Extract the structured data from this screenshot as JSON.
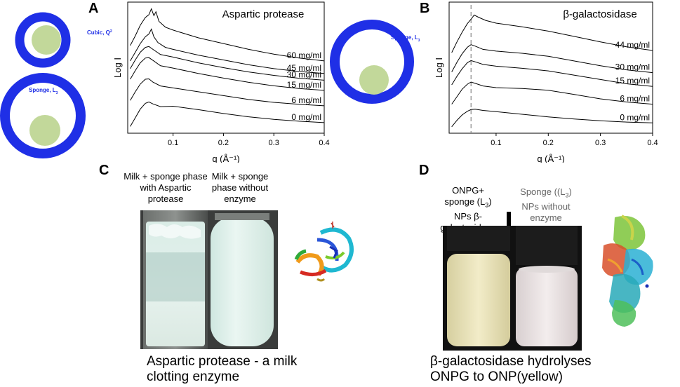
{
  "panels": {
    "A": {
      "letter": "A"
    },
    "B": {
      "letter": "B"
    },
    "C": {
      "letter": "C",
      "label_left": "Milk + sponge phase with Aspartic protease",
      "label_right": "Milk + sponge phase without enzyme",
      "caption_line1": "Aspartic protease - a milk",
      "caption_line2": "clotting enzyme"
    },
    "D": {
      "letter": "D",
      "label_left_1": "ONPG+",
      "label_left_2": "sponge (L",
      "label_left_2_sub": "3",
      "label_left_2_end": ")",
      "label_left_3": "NPs  β-",
      "label_left_4": "galactosidase",
      "label_right_1": "Sponge ((L",
      "label_right_1_sub": "3",
      "label_right_1_end": ")",
      "label_right_2": "NPs without",
      "label_right_3": "enzyme",
      "caption_line1": "β-galactosidase hydrolyses",
      "caption_line2": "ONPG to ONP(yellow)"
    }
  },
  "schematics": {
    "cubic_label": "Cubic, Q",
    "cubic_sup": "224",
    "sponge_label": "Sponge, L",
    "sponge_sub": "3",
    "sponge_label_b": "Sponge, L",
    "sponge_sub_b": "3"
  },
  "colors": {
    "ring": "#1f2fe6",
    "core": "#c2d89a",
    "label": "#1f2fe6"
  },
  "chart_data": [
    {
      "type": "line",
      "title": "Aspartic protease",
      "xlabel": "q (Å⁻¹)",
      "ylabel": "Log I",
      "xlim": [
        0.01,
        0.4
      ],
      "xticks": [
        0.1,
        0.2,
        0.3,
        0.4
      ],
      "xtick_labels": [
        "0.1",
        "0.2",
        "0.3",
        "0.4"
      ],
      "grid": false,
      "series": [
        {
          "name": "0 mg/ml",
          "x": [
            0.015,
            0.025,
            0.035,
            0.045,
            0.052,
            0.06,
            0.075,
            0.1,
            0.15,
            0.2,
            0.25,
            0.3,
            0.35,
            0.4
          ],
          "y": [
            -0.05,
            0.4,
            0.85,
            1.15,
            1.22,
            1.12,
            0.98,
            1.0,
            0.82,
            0.62,
            0.45,
            0.32,
            0.22,
            0.15
          ]
        },
        {
          "name": "6 mg/ml",
          "x": [
            0.015,
            0.025,
            0.035,
            0.045,
            0.052,
            0.06,
            0.075,
            0.1,
            0.15,
            0.2,
            0.25,
            0.3,
            0.35,
            0.4
          ],
          "y": [
            1.3,
            1.75,
            2.15,
            2.4,
            2.42,
            2.25,
            2.05,
            1.95,
            1.75,
            1.55,
            1.35,
            1.2,
            1.1,
            1.02
          ]
        },
        {
          "name": "15 mg/ml",
          "x": [
            0.015,
            0.025,
            0.035,
            0.045,
            0.052,
            0.06,
            0.075,
            0.1,
            0.15,
            0.2,
            0.25,
            0.3,
            0.35,
            0.4
          ],
          "y": [
            2.4,
            2.85,
            3.25,
            3.5,
            3.52,
            3.38,
            3.1,
            2.98,
            2.7,
            2.46,
            2.24,
            2.06,
            1.92,
            1.82
          ]
        },
        {
          "name": "30 mg/ml",
          "x": [
            0.015,
            0.025,
            0.035,
            0.045,
            0.052,
            0.06,
            0.075,
            0.1,
            0.15,
            0.2,
            0.25,
            0.3,
            0.35,
            0.4
          ],
          "y": [
            2.95,
            3.4,
            3.8,
            4.05,
            4.1,
            3.95,
            3.68,
            3.55,
            3.25,
            3.0,
            2.78,
            2.6,
            2.45,
            2.35
          ]
        },
        {
          "name": "45 mg/ml",
          "x": [
            0.015,
            0.025,
            0.035,
            0.045,
            0.052,
            0.057,
            0.062,
            0.07,
            0.085,
            0.1,
            0.15,
            0.2,
            0.25,
            0.3,
            0.35,
            0.4
          ],
          "y": [
            3.35,
            3.8,
            4.25,
            4.6,
            4.75,
            5.0,
            4.6,
            4.3,
            4.05,
            3.95,
            3.65,
            3.4,
            3.15,
            2.95,
            2.8,
            2.7
          ]
        },
        {
          "name": "60 mg/ml",
          "x": [
            0.015,
            0.025,
            0.035,
            0.045,
            0.052,
            0.057,
            0.062,
            0.066,
            0.072,
            0.085,
            0.1,
            0.15,
            0.2,
            0.25,
            0.3,
            0.35,
            0.4
          ],
          "y": [
            4.15,
            4.65,
            5.2,
            5.6,
            5.75,
            6.05,
            5.7,
            5.9,
            5.4,
            5.1,
            4.95,
            4.55,
            4.25,
            3.95,
            3.7,
            3.5,
            3.35
          ]
        }
      ]
    },
    {
      "type": "line",
      "title": "β-galactosidase",
      "xlabel": "q (Å⁻¹)",
      "ylabel": "Log I",
      "xlim": [
        0.01,
        0.4
      ],
      "xticks": [
        0.1,
        0.2,
        0.3,
        0.4
      ],
      "xtick_labels": [
        "0.1",
        "0.2",
        "0.3",
        "0.4"
      ],
      "grid": false,
      "reference_line_x": 0.052,
      "series": [
        {
          "name": "0 mg/ml",
          "x": [
            0.015,
            0.025,
            0.035,
            0.045,
            0.052,
            0.06,
            0.075,
            0.1,
            0.15,
            0.2,
            0.25,
            0.3,
            0.35,
            0.4
          ],
          "y": [
            -0.1,
            0.2,
            0.45,
            0.62,
            0.7,
            0.72,
            0.66,
            0.6,
            0.48,
            0.36,
            0.26,
            0.18,
            0.12,
            0.08
          ]
        },
        {
          "name": "6 mg/ml",
          "x": [
            0.015,
            0.025,
            0.035,
            0.045,
            0.052,
            0.06,
            0.075,
            0.1,
            0.15,
            0.2,
            0.25,
            0.3,
            0.35,
            0.4
          ],
          "y": [
            0.95,
            1.3,
            1.65,
            1.88,
            1.98,
            1.92,
            1.8,
            1.72,
            1.68,
            1.6,
            1.4,
            1.2,
            1.05,
            0.95
          ]
        },
        {
          "name": "15 mg/ml",
          "x": [
            0.015,
            0.025,
            0.035,
            0.045,
            0.052,
            0.06,
            0.075,
            0.1,
            0.15,
            0.2,
            0.25,
            0.3,
            0.35,
            0.4
          ],
          "y": [
            1.85,
            2.25,
            2.6,
            2.88,
            2.98,
            2.92,
            2.8,
            2.72,
            2.62,
            2.5,
            2.3,
            2.1,
            1.9,
            1.78
          ]
        },
        {
          "name": "30 mg/ml",
          "x": [
            0.015,
            0.025,
            0.035,
            0.045,
            0.052,
            0.06,
            0.075,
            0.1,
            0.15,
            0.2,
            0.25,
            0.3,
            0.35,
            0.4
          ],
          "y": [
            2.45,
            2.9,
            3.3,
            3.6,
            3.72,
            3.65,
            3.5,
            3.42,
            3.32,
            3.18,
            2.96,
            2.74,
            2.55,
            2.42
          ]
        },
        {
          "name": "44 mg/ml",
          "x": [
            0.015,
            0.025,
            0.035,
            0.045,
            0.052,
            0.058,
            0.066,
            0.08,
            0.1,
            0.15,
            0.2,
            0.25,
            0.3,
            0.35,
            0.4
          ],
          "y": [
            3.35,
            3.85,
            4.3,
            4.7,
            4.9,
            5.1,
            5.0,
            4.85,
            4.72,
            4.55,
            4.35,
            4.1,
            3.85,
            3.62,
            3.45
          ]
        }
      ]
    }
  ]
}
